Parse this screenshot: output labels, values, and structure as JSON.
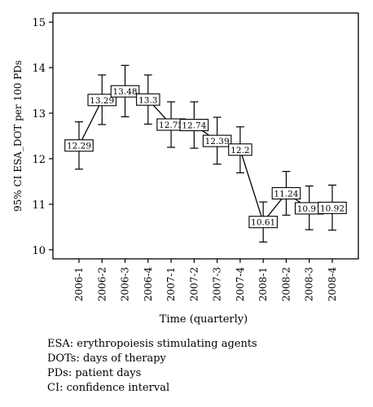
{
  "chart_data": {
    "type": "line",
    "categories": [
      "2006-1",
      "2006-2",
      "2006-3",
      "2006-4",
      "2007-1",
      "2007-2",
      "2007-3",
      "2007-4",
      "2008-1",
      "2008-2",
      "2008-3",
      "2008-4"
    ],
    "series": [
      {
        "values": [
          12.29,
          13.29,
          13.48,
          13.3,
          12.75,
          12.74,
          12.39,
          12.2,
          10.61,
          11.24,
          10.91,
          10.92
        ],
        "ci_lower": [
          11.77,
          12.75,
          12.92,
          12.76,
          12.25,
          12.23,
          11.88,
          11.69,
          10.17,
          10.76,
          10.44,
          10.43
        ],
        "ci_upper": [
          12.81,
          13.84,
          14.05,
          13.84,
          13.25,
          13.25,
          12.91,
          12.7,
          11.05,
          11.72,
          11.4,
          11.42
        ],
        "labels": [
          "12.29",
          "13.29",
          "13.48",
          "13.3",
          "12.75",
          "12.74",
          "12.39",
          "12.2",
          "10.61",
          "11.24",
          "10.91",
          "10.92"
        ]
      }
    ],
    "xlabel": "Time (quarterly)",
    "ylabel": "95% CI ESA_DOT per 100 PDs",
    "ylim": [
      9.8,
      15.2
    ],
    "yticks": [
      10,
      11,
      12,
      13,
      14,
      15
    ],
    "grid": false
  },
  "footnotes": [
    "ESA: erythropoiesis stimulating agents",
    "DOTs: days of therapy",
    "PDs: patient days",
    "CI: confidence interval"
  ]
}
